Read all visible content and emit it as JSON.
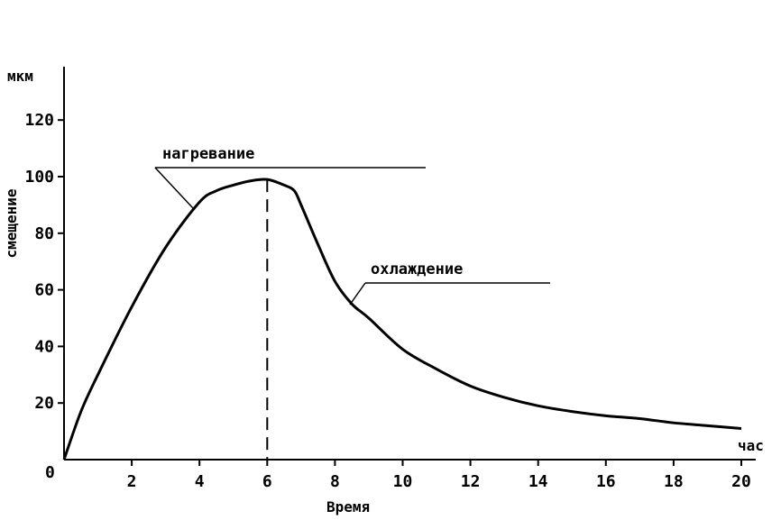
{
  "chart_data": {
    "type": "line",
    "title": "",
    "xlabel": "Время",
    "ylabel": "смещение",
    "x_unit": "час",
    "y_unit": "мкм",
    "xlim": [
      0,
      20
    ],
    "ylim": [
      0,
      130
    ],
    "x_ticks": [
      2,
      4,
      6,
      8,
      10,
      12,
      14,
      16,
      18,
      20
    ],
    "x_tick_labels": [
      "2",
      "4",
      "6",
      "8",
      "10",
      "12",
      "14",
      "16",
      "18",
      "20"
    ],
    "y_ticks": [
      20,
      40,
      60,
      80,
      100,
      120
    ],
    "y_tick_labels": [
      "20",
      "40",
      "60",
      "80",
      "100",
      "120"
    ],
    "origin_label": "0",
    "grid": false,
    "series": [
      {
        "x": [
          0,
          0.5,
          1,
          2,
          3,
          4,
          4.5,
          5,
          5.5,
          6,
          6.5,
          6.8,
          7,
          7.5,
          8,
          8.5,
          9,
          10,
          11,
          12,
          13,
          14,
          15,
          16,
          17,
          18,
          19,
          20
        ],
        "y": [
          0,
          17,
          30,
          54,
          75,
          91,
          95,
          97,
          98.5,
          99,
          97,
          95,
          90,
          76,
          63,
          55,
          50,
          39,
          32,
          26,
          22,
          19,
          17,
          15.5,
          14.5,
          13,
          12,
          11
        ]
      }
    ],
    "reference_lines": [
      {
        "orientation": "vertical",
        "x": 6,
        "style": "dashed"
      }
    ],
    "annotations": [
      {
        "text": "нагревание",
        "x": 3.7,
        "y": 102,
        "target": {
          "x": 3.9,
          "y": 90
        }
      },
      {
        "text": "охлаждение",
        "x": 9.1,
        "y": 64,
        "target": {
          "x": 8.4,
          "y": 58
        }
      }
    ],
    "colors": {
      "line": "#000000",
      "background": "#ffffff"
    }
  }
}
